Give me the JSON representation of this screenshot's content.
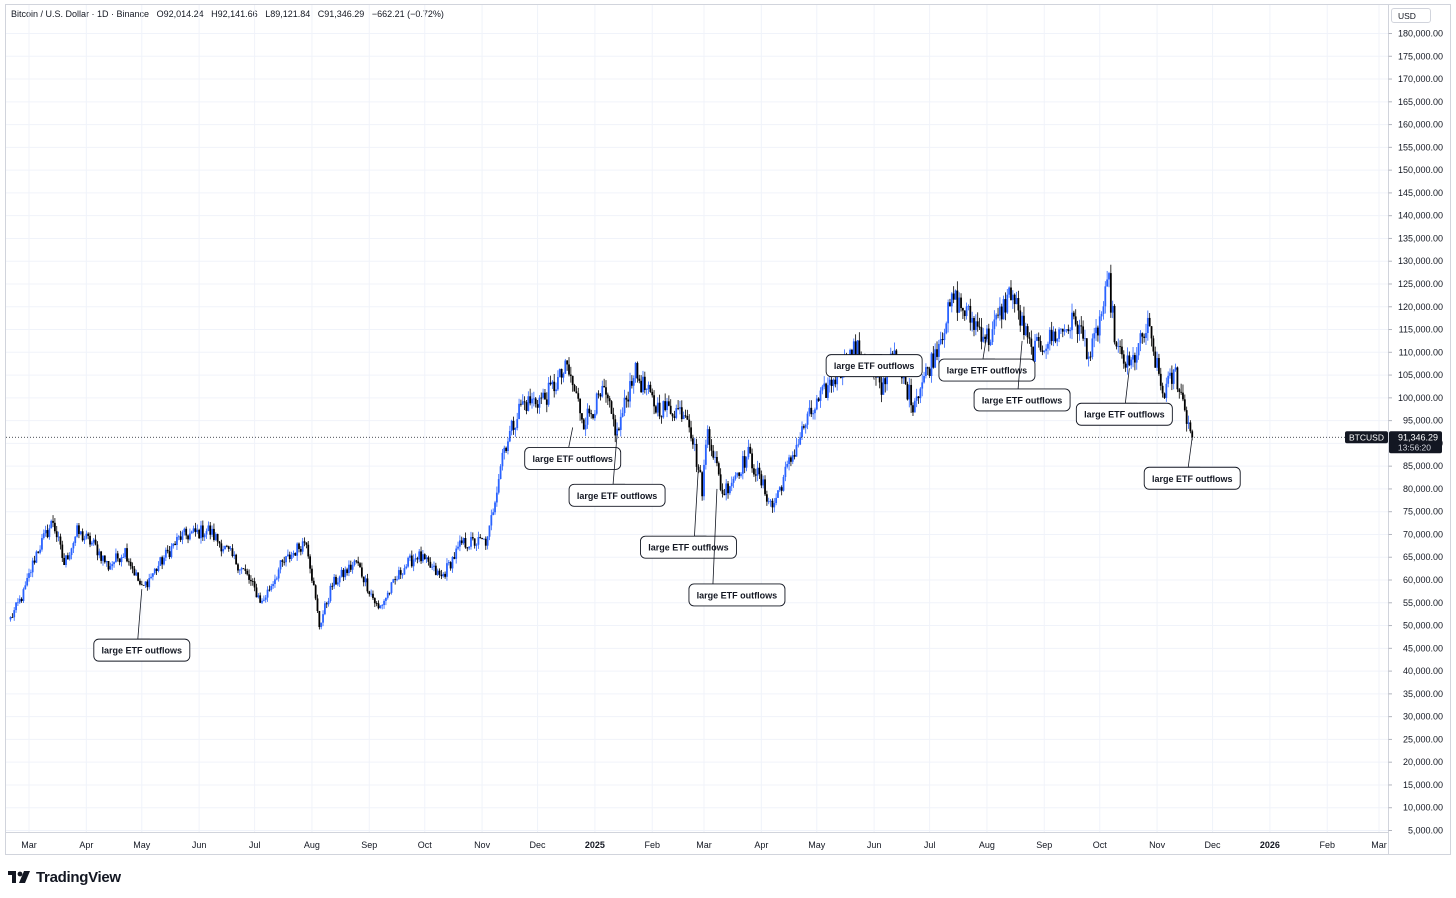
{
  "header": {
    "symbol": "Bitcoin / U.S. Dollar · 1D · Binance",
    "open": "O92,014.24",
    "high": "H92,141.66",
    "low": "L89,121.84",
    "close": "C91,346.29",
    "change": "−662.21 (−0.72%)"
  },
  "currency": "USD",
  "price_tag": {
    "symbol": "BTCUSD",
    "price": "91,346.29",
    "countdown": "13:56:20"
  },
  "footer": {
    "brand": "TradingView"
  },
  "colors": {
    "up": "#2962ff",
    "down": "#000000",
    "grid": "#f0f3fa",
    "border": "#d1d4dc"
  },
  "chart_data": {
    "type": "candlestick",
    "y_axis_labels": [
      "180,000.00",
      "175,000.00",
      "170,000.00",
      "165,000.00",
      "160,000.00",
      "155,000.00",
      "150,000.00",
      "145,000.00",
      "140,000.00",
      "135,000.00",
      "130,000.00",
      "125,000.00",
      "120,000.00",
      "115,000.00",
      "110,000.00",
      "105,000.00",
      "100,000.00",
      "95,000.00",
      "90,000.00",
      "85,000.00",
      "80,000.00",
      "75,000.00",
      "70,000.00",
      "65,000.00",
      "60,000.00",
      "55,000.00",
      "50,000.00",
      "45,000.00",
      "40,000.00",
      "35,000.00",
      "30,000.00",
      "25,000.00",
      "20,000.00",
      "15,000.00",
      "10,000.00",
      "5,000.00"
    ],
    "ylim": [
      5000,
      180000
    ],
    "x_axis_labels": [
      "Mar",
      "Apr",
      "May",
      "Jun",
      "Jul",
      "Aug",
      "Sep",
      "Oct",
      "Nov",
      "Dec",
      "2025",
      "Feb",
      "Mar",
      "Apr",
      "May",
      "Jun",
      "Jul",
      "Aug",
      "Sep",
      "Oct",
      "Nov",
      "Dec",
      "2026",
      "Feb",
      "Mar"
    ],
    "x_axis_bold": [
      "2025",
      "2026"
    ],
    "last_price": 91346.29,
    "price_path": [
      [
        "2024-02-20",
        51500
      ],
      [
        "2024-02-27",
        57000
      ],
      [
        "2024-03-05",
        66000
      ],
      [
        "2024-03-14",
        73000
      ],
      [
        "2024-03-20",
        63500
      ],
      [
        "2024-03-27",
        70500
      ],
      [
        "2024-04-05",
        67800
      ],
      [
        "2024-04-13",
        63000
      ],
      [
        "2024-04-22",
        66500
      ],
      [
        "2024-05-01",
        58000
      ],
      [
        "2024-05-08",
        62000
      ],
      [
        "2024-05-15",
        66000
      ],
      [
        "2024-05-22",
        69500
      ],
      [
        "2024-06-06",
        71000
      ],
      [
        "2024-06-18",
        65500
      ],
      [
        "2024-06-26",
        61500
      ],
      [
        "2024-07-05",
        55000
      ],
      [
        "2024-07-15",
        63000
      ],
      [
        "2024-07-29",
        69000
      ],
      [
        "2024-08-05",
        50000
      ],
      [
        "2024-08-12",
        59000
      ],
      [
        "2024-08-25",
        64000
      ],
      [
        "2024-09-06",
        53500
      ],
      [
        "2024-09-19",
        62500
      ],
      [
        "2024-09-27",
        65500
      ],
      [
        "2024-10-10",
        60500
      ],
      [
        "2024-10-21",
        68000
      ],
      [
        "2024-11-04",
        68500
      ],
      [
        "2024-11-12",
        88000
      ],
      [
        "2024-11-22",
        98500
      ],
      [
        "2024-12-05",
        100000
      ],
      [
        "2024-12-17",
        106500
      ],
      [
        "2024-12-26",
        95000
      ],
      [
        "2025-01-06",
        101000
      ],
      [
        "2025-01-13",
        92000
      ],
      [
        "2025-01-22",
        106000
      ],
      [
        "2025-02-03",
        98000
      ],
      [
        "2025-02-20",
        97000
      ],
      [
        "2025-02-28",
        80000
      ],
      [
        "2025-03-03",
        93500
      ],
      [
        "2025-03-11",
        79000
      ],
      [
        "2025-03-25",
        87500
      ],
      [
        "2025-04-07",
        76000
      ],
      [
        "2025-04-15",
        84500
      ],
      [
        "2025-04-25",
        94500
      ],
      [
        "2025-05-08",
        103000
      ],
      [
        "2025-05-22",
        111000
      ],
      [
        "2025-06-05",
        101500
      ],
      [
        "2025-06-10",
        110000
      ],
      [
        "2025-06-22",
        99000
      ],
      [
        "2025-07-03",
        109000
      ],
      [
        "2025-07-14",
        122000
      ],
      [
        "2025-07-24",
        117000
      ],
      [
        "2025-08-02",
        113000
      ],
      [
        "2025-08-14",
        123500
      ],
      [
        "2025-08-25",
        110000
      ],
      [
        "2025-09-18",
        117000
      ],
      [
        "2025-09-26",
        109000
      ],
      [
        "2025-10-06",
        125000
      ],
      [
        "2025-10-10",
        110500
      ],
      [
        "2025-10-17",
        106500
      ],
      [
        "2025-10-27",
        115500
      ],
      [
        "2025-11-04",
        101000
      ],
      [
        "2025-11-11",
        105500
      ],
      [
        "2025-11-20",
        91346.29
      ]
    ],
    "annotations": [
      {
        "text": "large ETF outflows",
        "date": "2024-05-01",
        "price": 58000
      },
      {
        "text": "large ETF outflows",
        "date": "2024-12-20",
        "price": 93500
      },
      {
        "text": "large ETF outflows",
        "date": "2025-01-13",
        "price": 92000
      },
      {
        "text": "large ETF outflows",
        "date": "2025-02-26",
        "price": 85000
      },
      {
        "text": "large ETF outflows",
        "date": "2025-03-08",
        "price": 80000
      },
      {
        "text": "large ETF outflows",
        "date": "2025-06-01",
        "price": 104000
      },
      {
        "text": "large ETF outflows",
        "date": "2025-08-01",
        "price": 114000
      },
      {
        "text": "large ETF outflows",
        "date": "2025-08-20",
        "price": 112500
      },
      {
        "text": "large ETF outflows",
        "date": "2025-10-17",
        "price": 106500
      },
      {
        "text": "large ETF outflows",
        "date": "2025-11-20",
        "price": 91346.29
      }
    ]
  }
}
